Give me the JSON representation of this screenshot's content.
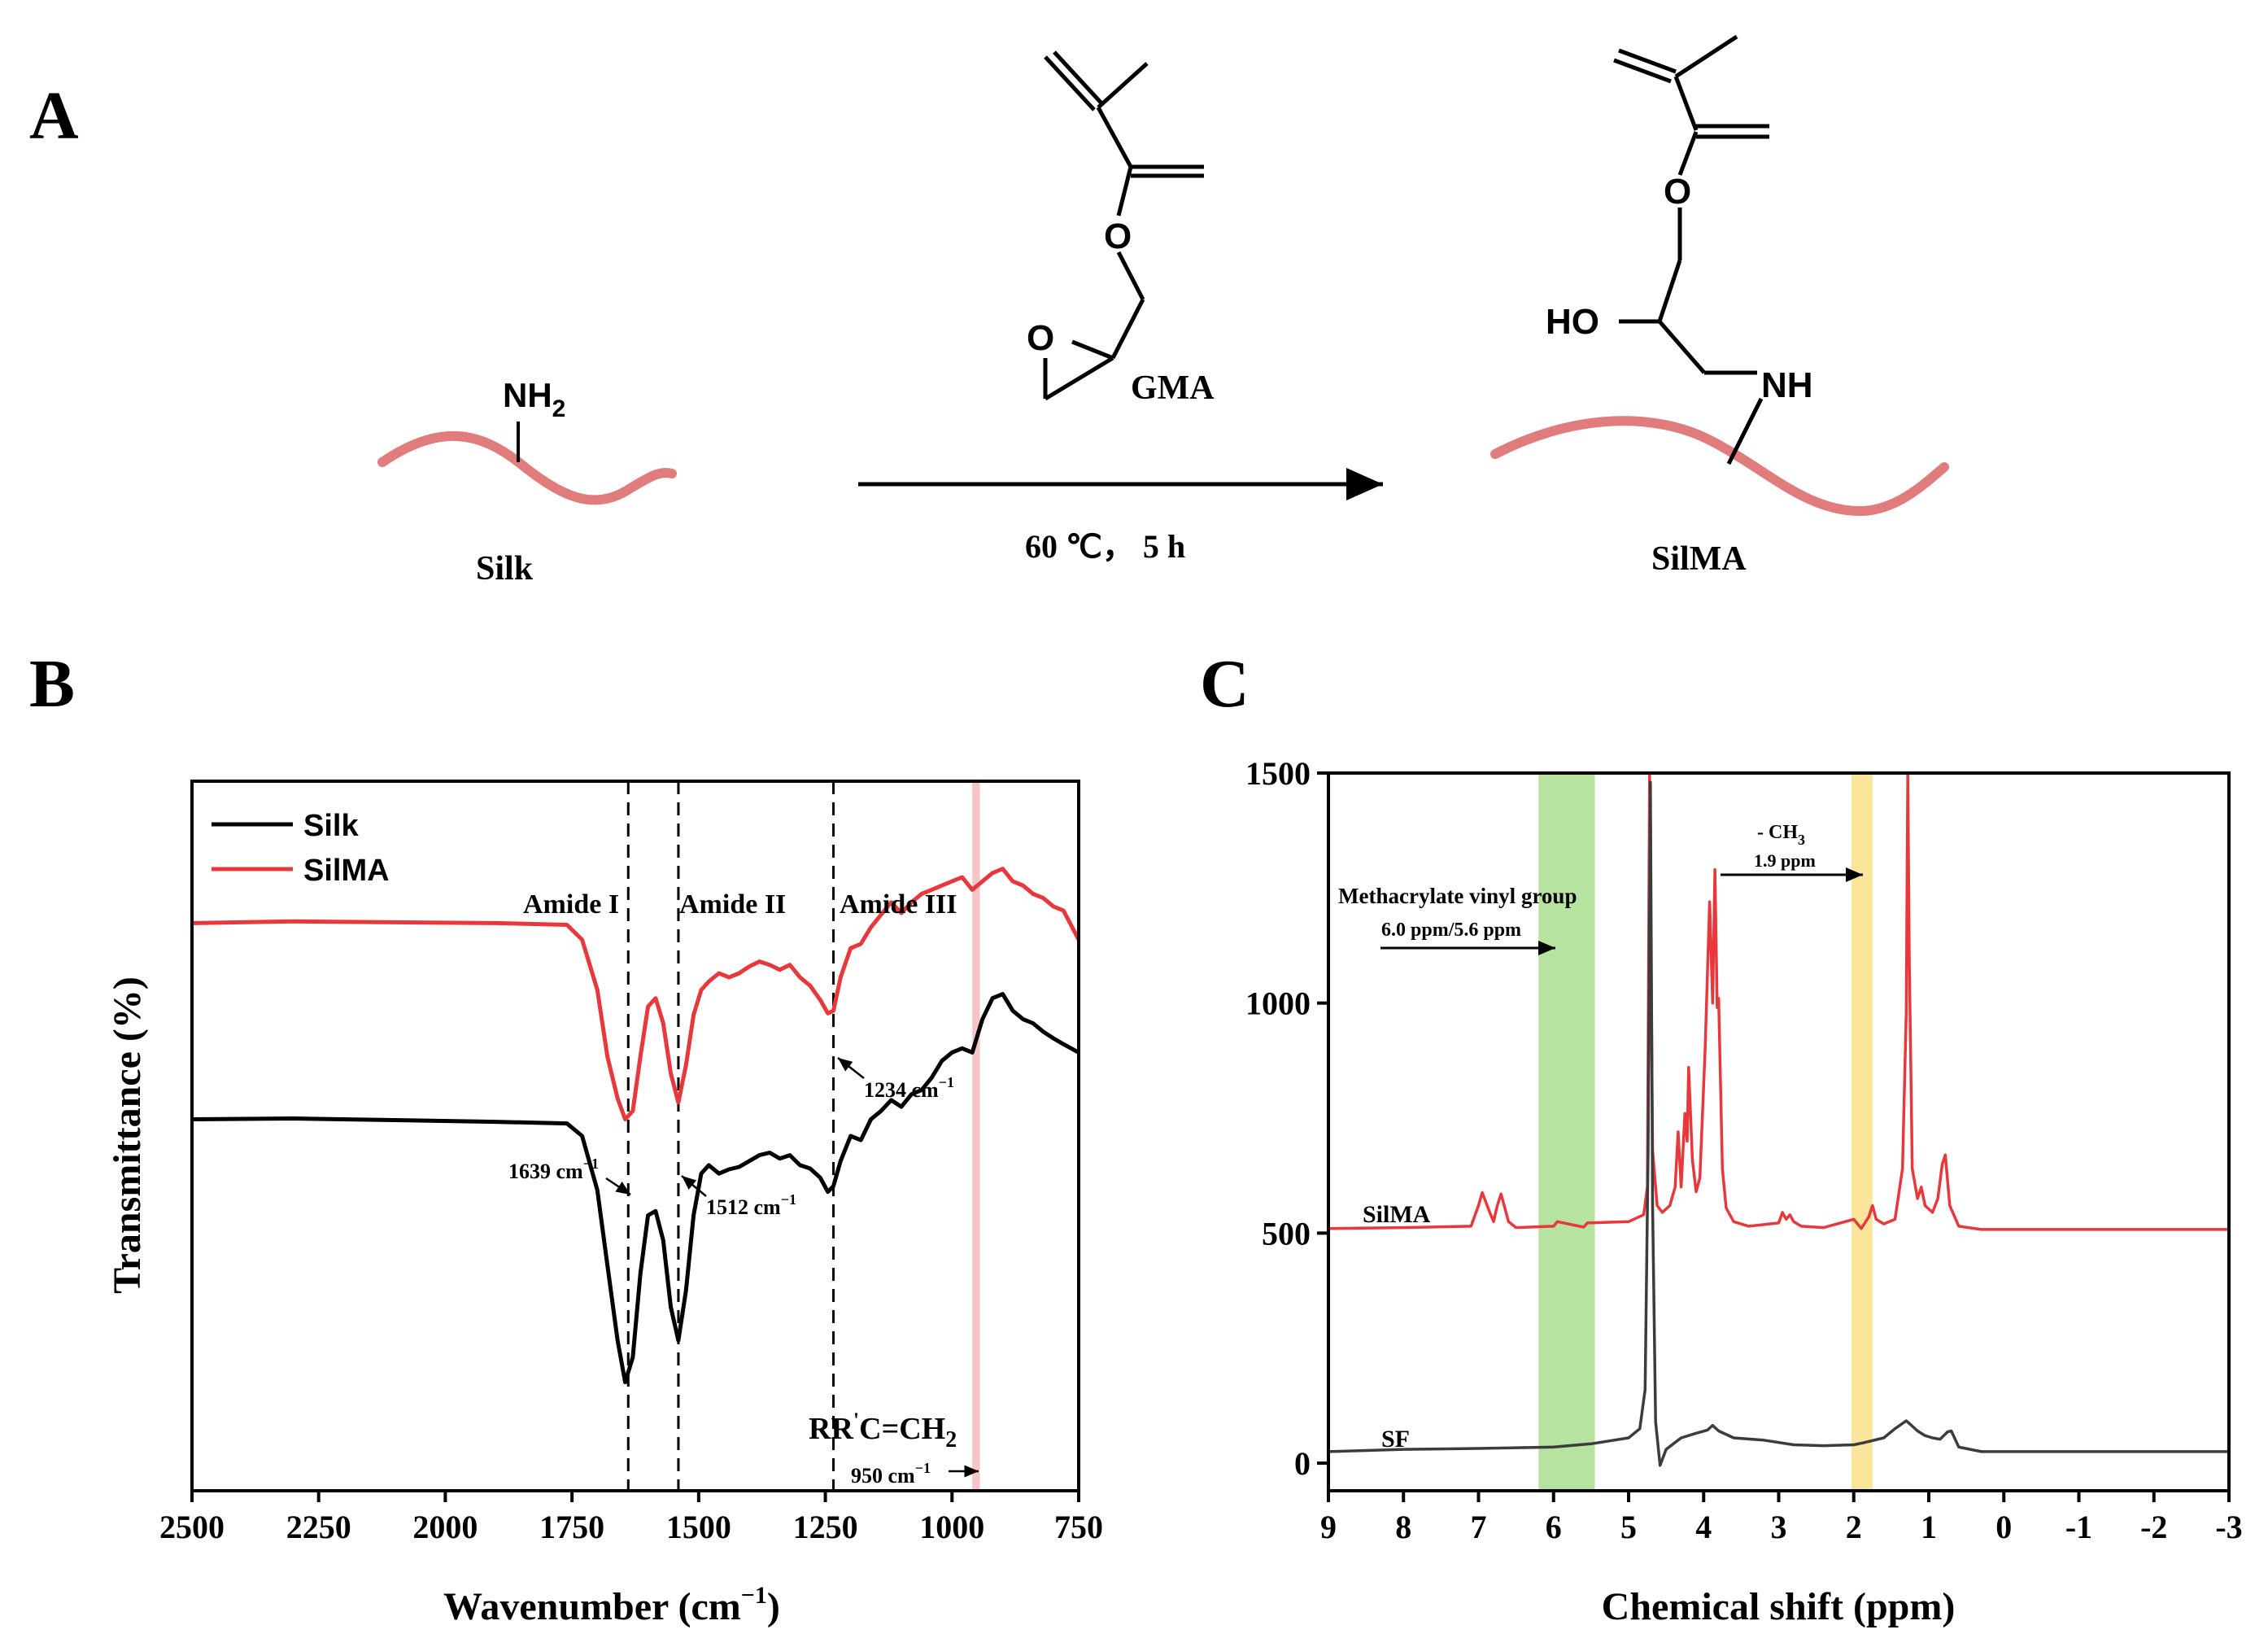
{
  "panels": {
    "a": {
      "letter": "A"
    },
    "b": {
      "letter": "B"
    },
    "c": {
      "letter": "C"
    }
  },
  "scheme": {
    "silk_label": "Silk",
    "silk_group": "NH",
    "silk_group_sub": "2",
    "gma_label": "GMA",
    "gma_O_carbonyl": "O",
    "gma_O_ester": "O",
    "gma_O_epoxide": "O",
    "conditions": "60 ℃， 5 h",
    "product_label": "SilMA",
    "product_HO": "HO",
    "product_NH": "NH",
    "product_O_ester": "O",
    "colors": {
      "backbone": "#e07c7c",
      "bond": "#000000"
    }
  },
  "chart_data": [
    {
      "type": "line",
      "panel": "B",
      "xlabel": "Wavenumber (cm",
      "xlabel_sup": "−1",
      "xlabel_close": ")",
      "ylabel": "Transmittance (%)",
      "xlim": [
        2500,
        750
      ],
      "xticks": [
        "2500",
        "2250",
        "2000",
        "1750",
        "1500",
        "1250",
        "1000",
        "750"
      ],
      "y_ticks_shown": false,
      "legend": {
        "placement": "top-left",
        "items": [
          "Silk",
          "SilMA"
        ]
      },
      "grid": false,
      "vlines": [
        1639,
        1540,
        1234
      ],
      "band": {
        "from": 960,
        "to": 945,
        "color": "#f7c5c8"
      },
      "annotations": {
        "amide1": "Amide I",
        "amide2": "Amide II",
        "amide3": "Amide III",
        "peak_1639": "1639 cm",
        "peak_1512": "1512 cm",
        "peak_1234": "1234 cm",
        "peak_unit_sup": "−1",
        "group_rr": "RR",
        "group_prime": "'",
        "group_c": "C=CH",
        "group_sub": "2",
        "peak_950": "950 cm"
      },
      "series": [
        {
          "name": "Silk",
          "color": "#000000",
          "x": [
            2500,
            2300,
            2100,
            1900,
            1760,
            1730,
            1700,
            1680,
            1660,
            1645,
            1630,
            1615,
            1600,
            1585,
            1570,
            1555,
            1540,
            1525,
            1510,
            1495,
            1480,
            1460,
            1440,
            1420,
            1400,
            1380,
            1360,
            1340,
            1320,
            1300,
            1280,
            1260,
            1245,
            1234,
            1220,
            1200,
            1180,
            1160,
            1140,
            1120,
            1100,
            1080,
            1060,
            1040,
            1020,
            1000,
            980,
            960,
            940,
            920,
            900,
            880,
            860,
            840,
            820,
            800,
            780,
            750
          ],
          "values": [
            44.5,
            44.6,
            44.4,
            44.2,
            44.0,
            42.5,
            36,
            27,
            18,
            13,
            16,
            26,
            33,
            33.5,
            30,
            22,
            18,
            24,
            33,
            38,
            39,
            38,
            38.5,
            38.8,
            39.5,
            40.2,
            40.5,
            39.8,
            40.2,
            39.0,
            38.6,
            37.5,
            35.8,
            36.5,
            39.5,
            42.5,
            42.0,
            44.5,
            45.5,
            46.8,
            46.0,
            47.5,
            48.0,
            49.5,
            51.5,
            52.5,
            53.0,
            52.5,
            56.5,
            59.0,
            59.5,
            57.5,
            56.5,
            56.0,
            55.0,
            54.2,
            53.5,
            52.5
          ]
        },
        {
          "name": "SilMA",
          "color": "#e8383c",
          "x": [
            2500,
            2300,
            2100,
            1900,
            1760,
            1730,
            1700,
            1680,
            1660,
            1645,
            1630,
            1615,
            1600,
            1585,
            1570,
            1555,
            1540,
            1525,
            1510,
            1495,
            1480,
            1460,
            1440,
            1420,
            1400,
            1380,
            1360,
            1340,
            1320,
            1300,
            1280,
            1260,
            1245,
            1234,
            1220,
            1200,
            1180,
            1160,
            1140,
            1120,
            1100,
            1080,
            1060,
            1040,
            1020,
            1000,
            980,
            960,
            940,
            920,
            900,
            880,
            860,
            840,
            820,
            800,
            780,
            750
          ],
          "values": [
            68.0,
            68.2,
            68.1,
            68.0,
            67.8,
            66.0,
            60,
            52,
            47,
            44.5,
            45.5,
            52,
            58,
            59,
            56,
            50,
            46.5,
            51,
            57,
            60,
            61,
            62,
            61.5,
            62.0,
            62.8,
            63.4,
            63.0,
            62.4,
            63.0,
            61.5,
            60.5,
            58.8,
            57.2,
            57.5,
            61.5,
            65.0,
            65.5,
            67.5,
            69.0,
            70.5,
            69.2,
            70.5,
            71.5,
            72.0,
            72.5,
            73.0,
            73.5,
            72.0,
            73.0,
            74.0,
            74.5,
            73.0,
            72.5,
            71.5,
            71.0,
            70.0,
            69.5,
            66.0
          ]
        }
      ]
    },
    {
      "type": "line",
      "panel": "C",
      "xlabel": "Chemical shift (ppm)",
      "ylabel": "",
      "xlim": [
        9,
        -3
      ],
      "ylim": [
        -60,
        1500
      ],
      "xticks": [
        "9",
        "8",
        "7",
        "6",
        "5",
        "4",
        "3",
        "2",
        "1",
        "0",
        "-1",
        "-2",
        "-3"
      ],
      "yticks": [
        "0",
        "500",
        "1000",
        "1500"
      ],
      "grid": false,
      "bands": [
        {
          "from": 6.2,
          "to": 5.45,
          "color": "#b6e3a0"
        },
        {
          "from": 2.03,
          "to": 1.75,
          "color": "#fbe59a"
        }
      ],
      "annotations": {
        "vinyl_title": "Methacrylate vinyl group",
        "vinyl_ppm": "6.0 ppm/5.6 ppm",
        "ch3_title": "- CH",
        "ch3_sub": "3",
        "ch3_ppm": "1.9 ppm",
        "silma_label": "SilMA",
        "sf_label": "SF"
      },
      "series": [
        {
          "name": "SilMA",
          "color": "#e8383c",
          "x": [
            9.0,
            8.0,
            7.1,
            7.0,
            6.95,
            6.85,
            6.8,
            6.75,
            6.7,
            6.6,
            6.5,
            6.0,
            5.95,
            5.6,
            5.55,
            5.0,
            4.8,
            4.75,
            4.72,
            4.68,
            4.62,
            4.55,
            4.45,
            4.38,
            4.34,
            4.3,
            4.25,
            4.22,
            4.2,
            4.15,
            4.1,
            4.05,
            3.98,
            3.92,
            3.88,
            3.85,
            3.82,
            3.8,
            3.75,
            3.7,
            3.6,
            3.4,
            3.0,
            2.95,
            2.9,
            2.85,
            2.8,
            2.7,
            2.4,
            2.0,
            1.9,
            1.8,
            1.75,
            1.7,
            1.6,
            1.45,
            1.35,
            1.3,
            1.28,
            1.26,
            1.22,
            1.15,
            1.1,
            1.05,
            0.95,
            0.88,
            0.82,
            0.78,
            0.72,
            0.6,
            0.3,
            -1.0,
            -3.0
          ],
          "values": [
            510,
            512,
            515,
            560,
            588,
            545,
            525,
            560,
            585,
            525,
            512,
            515,
            525,
            513,
            522,
            525,
            540,
            600,
            1500,
            680,
            560,
            545,
            560,
            600,
            720,
            600,
            760,
            700,
            860,
            660,
            590,
            620,
            900,
            1220,
            1000,
            1290,
            990,
            1010,
            640,
            555,
            525,
            515,
            522,
            545,
            530,
            540,
            525,
            515,
            512,
            530,
            510,
            535,
            560,
            530,
            520,
            530,
            640,
            980,
            1500,
            1100,
            640,
            575,
            600,
            560,
            545,
            575,
            650,
            670,
            560,
            515,
            508,
            508,
            508
          ]
        },
        {
          "name": "SF",
          "color": "#3c3c3c",
          "x": [
            9.0,
            8.0,
            7.0,
            6.0,
            5.5,
            5.0,
            4.85,
            4.78,
            4.74,
            4.71,
            4.68,
            4.64,
            4.58,
            4.5,
            4.3,
            4.1,
            3.95,
            3.88,
            3.8,
            3.6,
            3.2,
            2.8,
            2.4,
            2.0,
            1.85,
            1.6,
            1.45,
            1.3,
            1.25,
            1.15,
            1.05,
            0.95,
            0.85,
            0.75,
            0.7,
            0.6,
            0.3,
            -1.0,
            -3.0
          ],
          "values": [
            25,
            30,
            32,
            35,
            42,
            55,
            75,
            160,
            680,
            1480,
            560,
            90,
            -5,
            30,
            55,
            65,
            72,
            82,
            70,
            55,
            50,
            40,
            38,
            40,
            45,
            55,
            75,
            92,
            85,
            70,
            60,
            55,
            52,
            68,
            70,
            35,
            25,
            25,
            25
          ]
        }
      ]
    }
  ]
}
